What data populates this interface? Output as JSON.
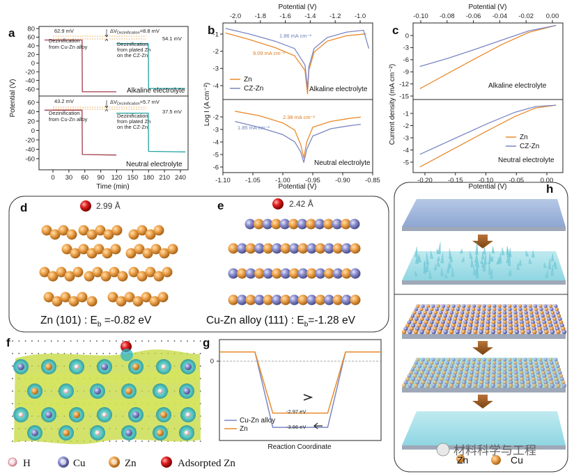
{
  "figure": {
    "panel_labels": [
      "a",
      "b",
      "c",
      "d",
      "e",
      "f",
      "g",
      "h"
    ]
  },
  "panel_a": {
    "ylabel": "Potential (V)",
    "xlabel": "Time (min)",
    "yticks_top": [
      "80",
      "60",
      "40",
      "20",
      "0",
      "-20",
      "-40",
      "-60"
    ],
    "yticks_bot": [
      "60",
      "40",
      "20",
      "0",
      "-20",
      "-40",
      "-60"
    ],
    "xticks": [
      "0",
      "30",
      "60",
      "90",
      "120",
      "150",
      "180",
      "210",
      "240"
    ],
    "top": {
      "v1": "62.9 mV",
      "v2": "54.1 mV",
      "dv_prefix": "ΔV",
      "dv_sub": "Dezinification",
      "dv_val": "=8.8 mV",
      "note1_l1": "Dezinification",
      "note1_l2": "from Cu-Zn alloy",
      "note2_l1": "Dezinification",
      "note2_l2": "from plated Zn",
      "note2_l3": "on the CZ-Zn",
      "electrolyte": "Alkaline electrolyte"
    },
    "bottom": {
      "v1": "43.2 mV",
      "v2": "37.5 mV",
      "dv_prefix": "ΔV",
      "dv_sub": "Dezinification",
      "dv_val": "=5.7 mV",
      "note1_l1": "Dezinification",
      "note1_l2": "from Cu-Zn alloy",
      "note2_l1": "Dezinification",
      "note2_l2": "from plated Zn",
      "note2_l3": "on the CZ-Zn",
      "electrolyte": "Neutral electrolyte"
    }
  },
  "panel_b": {
    "top_xlabel": "Potential (V)",
    "bottom_xlabel": "Potential (V)",
    "ylabel": "Log I (A cm⁻²)",
    "top_xticks": [
      "-2.0",
      "-1.8",
      "-1.6",
      "-1.4",
      "-1.2",
      "-1.0"
    ],
    "bottom_xticks": [
      "-1.10",
      "-1.05",
      "-1.00",
      "-0.95",
      "-0.90",
      "-0.85"
    ],
    "yticks_top": [
      "-1",
      "-2",
      "-3",
      "-4"
    ],
    "yticks_bot": [
      "-2",
      "-3",
      "-4",
      "-5",
      "-6"
    ],
    "top_ann_blue": "1.86 mA cm⁻²",
    "top_ann_orange": "9.09 mA cm⁻²",
    "bot_ann_orange": "2.38 mA cm⁻²",
    "bot_ann_blue": "1.85 mA cm⁻²",
    "legend": [
      "Zn",
      "CZ-Zn"
    ],
    "top_electrolyte": "Alkaline electrolyte",
    "bot_electrolyte": "Neutral electrolyte"
  },
  "panel_c": {
    "top_xlabel": "Potential (V)",
    "bottom_xlabel": "Potential (V)",
    "ylabel": "Current density (mA cm⁻²)",
    "top_xticks": [
      "-0.10",
      "-0.08",
      "-0.06",
      "-0.04",
      "-0.02",
      "0.00"
    ],
    "bottom_xticks": [
      "-0.20",
      "-0.15",
      "-0.10",
      "-0.05",
      "0.00"
    ],
    "yticks_top": [
      "0",
      "-3",
      "-6",
      "-9",
      "-12",
      "-15"
    ],
    "yticks_bot": [
      "-1",
      "-2",
      "-3",
      "-4",
      "-5"
    ],
    "legend": [
      "Zn",
      "CZ-Zn"
    ],
    "top_electrolyte": "Alkaline electrolyte",
    "bot_electrolyte": "Neutral electrolyte"
  },
  "panel_d": {
    "distance": "2.99 Å",
    "caption_pre": "Zn (101) : E",
    "caption_sub": "b",
    "caption_val": " =-0.82 eV"
  },
  "panel_e": {
    "distance": "2.42 Å",
    "caption_pre": "Cu-Zn alloy (111) : E",
    "caption_sub": "b",
    "caption_val": "=-1.28 eV"
  },
  "panel_g": {
    "ytick": "0",
    "xlabel": "Reaction Coordinate",
    "ann_orange": "-2.97 eV",
    "ann_blue": "-3.66 eV",
    "legend": [
      "Cu-Zn alloy",
      "Zn"
    ]
  },
  "legend_bottom": {
    "items": [
      "H",
      "Cu",
      "Zn",
      "Adsorpted Zn"
    ]
  },
  "panel_h": {
    "labels": [
      "Zn",
      "Cu"
    ]
  },
  "watermark": "材料科学与工程",
  "colors": {
    "zn_orange": "#e88a2a",
    "czzn_blue": "#7a86c2",
    "teal": "#1fa0a0",
    "red_trace": "#a23a4a",
    "atom_cu": "#7d82c0"
  },
  "chart_data": [
    {
      "id": "a-top",
      "type": "line",
      "title": "Alkaline electrolyte",
      "xlabel": "Time (min)",
      "ylabel": "Potential (V)",
      "xlim": [
        -20,
        250
      ],
      "ylim": [
        -70,
        95
      ],
      "series": [
        {
          "name": "Cu-Zn alloy",
          "x": [
            -10,
            58,
            58.5,
            120
          ],
          "y": [
            62.9,
            62.9,
            -60,
            -60
          ]
        },
        {
          "name": "plated Zn on CZ-Zn",
          "x": [
            120,
            178,
            178.5,
            245
          ],
          "y": [
            54.1,
            54.1,
            -52,
            -52
          ]
        }
      ]
    },
    {
      "id": "a-bottom",
      "type": "line",
      "title": "Neutral electrolyte",
      "xlabel": "Time (min)",
      "ylabel": "Potential (V)",
      "xlim": [
        -20,
        250
      ],
      "ylim": [
        -70,
        70
      ],
      "series": [
        {
          "name": "Cu-Zn alloy",
          "x": [
            -10,
            58,
            58.5,
            120
          ],
          "y": [
            43.2,
            43.2,
            -41,
            -42
          ]
        },
        {
          "name": "plated Zn on CZ-Zn",
          "x": [
            120,
            178,
            178.5,
            245
          ],
          "y": [
            37.5,
            37.5,
            -35,
            -36
          ]
        }
      ]
    },
    {
      "id": "b-top",
      "type": "line",
      "title": "Alkaline electrolyte",
      "xlabel": "Potential (V)",
      "ylabel": "Log I (A cm-2)",
      "xlim": [
        -2.1,
        -0.95
      ],
      "ylim": [
        -4.6,
        -0.4
      ],
      "series": [
        {
          "name": "Zn",
          "x": [
            -2.08,
            -1.9,
            -1.7,
            -1.55,
            -1.47,
            -1.45,
            -1.44,
            -1.4,
            -1.3,
            -1.15,
            -1.0
          ],
          "y": [
            -0.95,
            -1.3,
            -1.75,
            -2.2,
            -3.0,
            -4.3,
            -3.0,
            -2.0,
            -1.4,
            -1.1,
            -1.0
          ]
        },
        {
          "name": "CZ-Zn",
          "x": [
            -2.08,
            -1.9,
            -1.7,
            -1.55,
            -1.47,
            -1.45,
            -1.44,
            -1.4,
            -1.3,
            -1.15,
            -1.02,
            -0.98
          ],
          "y": [
            -0.7,
            -1.0,
            -1.4,
            -1.8,
            -2.7,
            -4.0,
            -2.8,
            -1.8,
            -1.2,
            -0.9,
            -0.8,
            -1.8
          ]
        }
      ]
    },
    {
      "id": "b-bottom",
      "type": "line",
      "title": "Neutral electrolyte",
      "xlabel": "Potential (V)",
      "ylabel": "Log I (A cm-2)",
      "xlim": [
        -1.1,
        -0.85
      ],
      "ylim": [
        -6.4,
        -1.4
      ],
      "series": [
        {
          "name": "Zn",
          "x": [
            -1.08,
            -1.04,
            -1.0,
            -0.98,
            -0.97,
            -0.965,
            -0.96,
            -0.95,
            -0.92,
            -0.89,
            -0.87
          ],
          "y": [
            -2.2,
            -2.5,
            -3.0,
            -3.5,
            -4.5,
            -5.4,
            -4.3,
            -3.3,
            -2.9,
            -2.7,
            -2.6
          ]
        },
        {
          "name": "CZ-Zn",
          "x": [
            -1.08,
            -1.04,
            -1.0,
            -0.98,
            -0.97,
            -0.965,
            -0.96,
            -0.95,
            -0.92,
            -0.89,
            -0.87
          ],
          "y": [
            -2.9,
            -3.3,
            -3.8,
            -4.3,
            -5.0,
            -5.7,
            -4.8,
            -3.9,
            -3.4,
            -3.2,
            -3.1
          ]
        }
      ]
    },
    {
      "id": "c-top",
      "type": "line",
      "title": "Alkaline electrolyte",
      "xlabel": "Potential (V)",
      "ylabel": "Current density (mA cm-2)",
      "xlim": [
        -0.105,
        0.005
      ],
      "ylim": [
        -15,
        0.5
      ],
      "series": [
        {
          "name": "Zn",
          "x": [
            -0.1,
            -0.08,
            -0.06,
            -0.04,
            -0.02,
            0.0
          ],
          "y": [
            -12.8,
            -9.8,
            -6.8,
            -3.9,
            -1.4,
            0.0
          ]
        },
        {
          "name": "CZ-Zn",
          "x": [
            -0.1,
            -0.08,
            -0.06,
            -0.04,
            -0.02,
            0.0
          ],
          "y": [
            -8.3,
            -6.7,
            -4.9,
            -3.0,
            -1.1,
            0.0
          ]
        }
      ]
    },
    {
      "id": "c-bottom",
      "type": "line",
      "title": "Neutral electrolyte",
      "xlabel": "Potential (V)",
      "ylabel": "Current density (mA cm-2)",
      "xlim": [
        -0.21,
        0.01
      ],
      "ylim": [
        -6,
        -0.8
      ],
      "series": [
        {
          "name": "Zn",
          "x": [
            -0.2,
            -0.15,
            -0.1,
            -0.06,
            -0.03,
            0.0
          ],
          "y": [
            -5.6,
            -4.3,
            -3.0,
            -2.0,
            -1.4,
            -1.2
          ]
        },
        {
          "name": "CZ-Zn",
          "x": [
            -0.2,
            -0.15,
            -0.1,
            -0.06,
            -0.03,
            0.0
          ],
          "y": [
            -4.7,
            -3.6,
            -2.5,
            -1.7,
            -1.3,
            -1.2
          ]
        }
      ]
    },
    {
      "id": "g",
      "type": "line",
      "title": "",
      "xlabel": "Reaction Coordinate",
      "ylabel": "",
      "xlim": [
        0,
        10
      ],
      "ylim": [
        -4.3,
        0.6
      ],
      "series": [
        {
          "name": "Cu-Zn alloy",
          "x": [
            0,
            2.2,
            3.3,
            6.7,
            7.8,
            10
          ],
          "y": [
            0,
            0,
            -3.66,
            -3.66,
            0,
            0
          ]
        },
        {
          "name": "Zn",
          "x": [
            0,
            2.2,
            3.3,
            6.7,
            7.8,
            10
          ],
          "y": [
            0,
            0,
            -2.97,
            -2.97,
            0,
            0
          ]
        }
      ]
    }
  ]
}
